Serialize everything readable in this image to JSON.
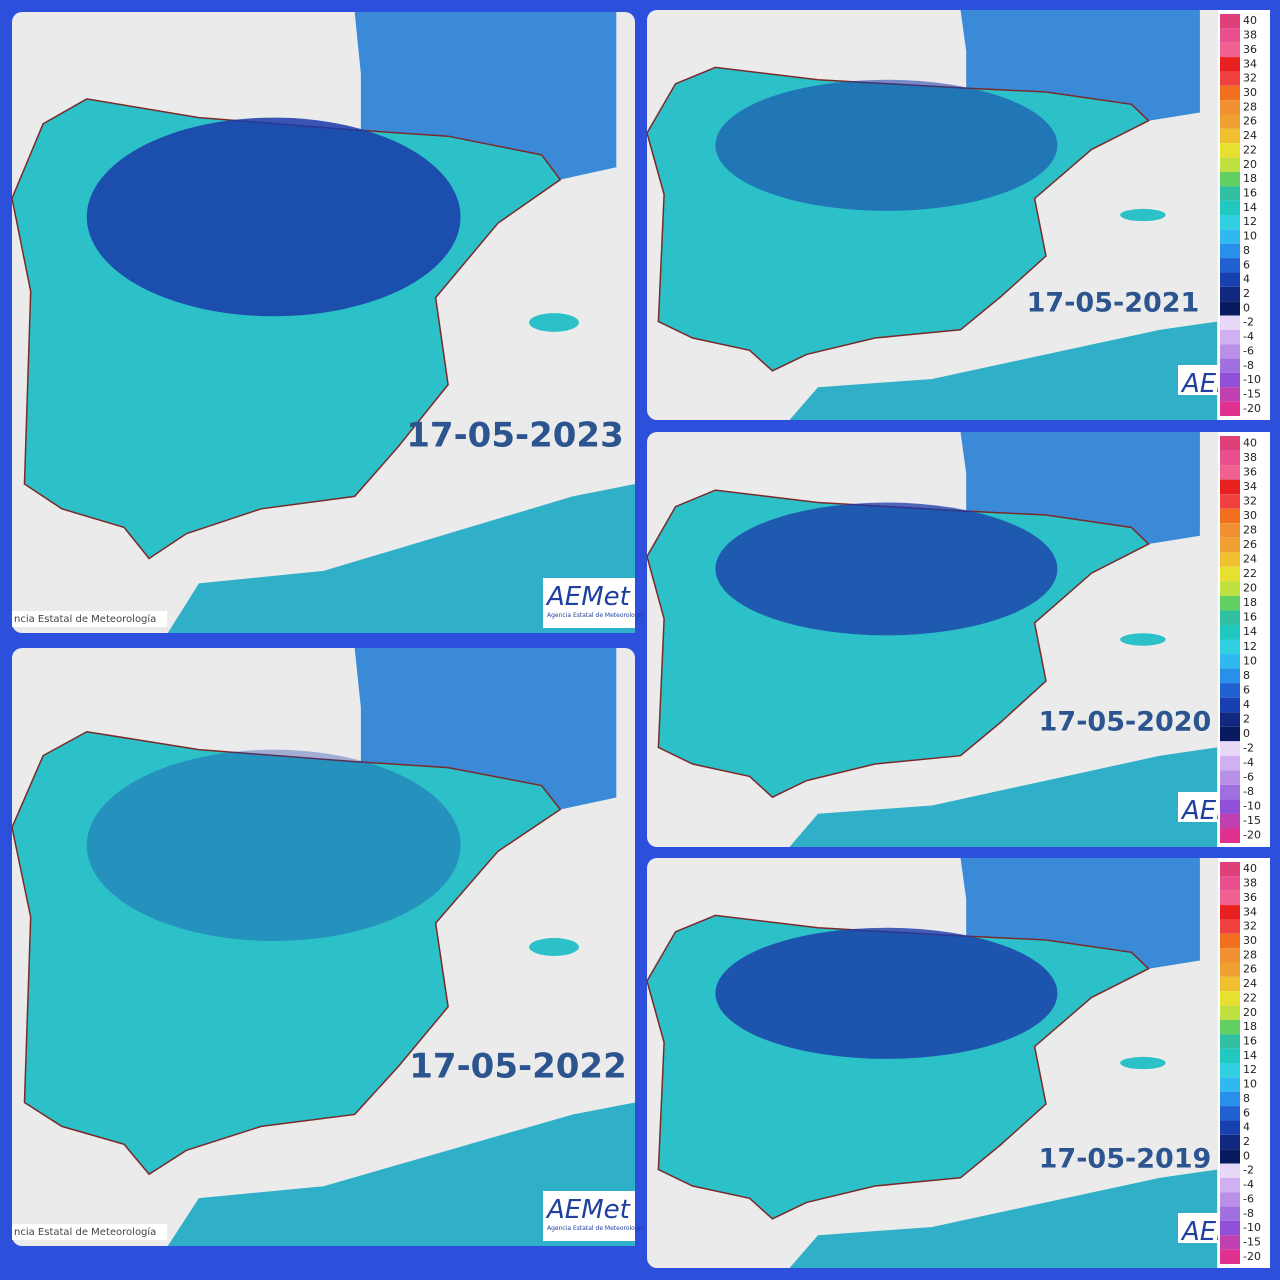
{
  "panels": [
    {
      "date": "17-05-2023",
      "footer": "ncia Estatal de Meteorología"
    },
    {
      "date": "17-05-2022",
      "footer": "ncia Estatal de Meteorología"
    },
    {
      "date": "17-05-2021"
    },
    {
      "date": "17-05-2020"
    },
    {
      "date": "17-05-2019"
    }
  ],
  "logo": "AEMet",
  "logo_caption": "Agencia Estatal de Meteorología",
  "colorbar": {
    "labels": [
      40,
      38,
      36,
      34,
      32,
      30,
      28,
      26,
      24,
      22,
      20,
      18,
      16,
      14,
      12,
      10,
      8,
      6,
      4,
      2,
      0,
      -2,
      -4,
      -6,
      -8,
      -10,
      -15,
      -20
    ],
    "colors": [
      "#e0407a",
      "#e85090",
      "#f06090",
      "#e82020",
      "#f04040",
      "#f07020",
      "#f09030",
      "#f0a030",
      "#f0c030",
      "#e8e030",
      "#c0e040",
      "#60d060",
      "#30c0a0",
      "#20c8c0",
      "#30d0e0",
      "#30b8f0",
      "#2890e8",
      "#2060d0",
      "#1840b0",
      "#102880",
      "#0a1a60",
      "#e8d8f8",
      "#d0b0f0",
      "#b890e8",
      "#a070e0",
      "#9050d8",
      "#c040b0",
      "#e03090"
    ]
  }
}
